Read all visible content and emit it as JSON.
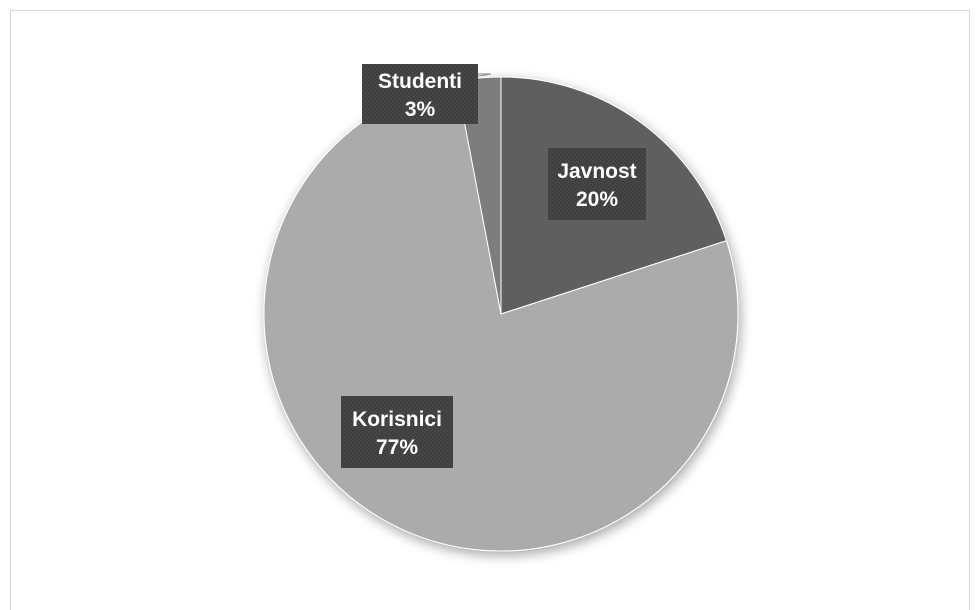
{
  "chart_data": {
    "type": "pie",
    "title": "",
    "start_angle_deg": 0,
    "direction": "clockwise",
    "slices": [
      {
        "name": "Javnost",
        "value": 20,
        "label": "20%",
        "color": "#5f5f5f"
      },
      {
        "name": "Korisnici",
        "value": 77,
        "label": "77%",
        "color": "#ababab"
      },
      {
        "name": "Studenti",
        "value": 3,
        "label": "3%",
        "color": "#7d7d7d"
      }
    ],
    "label_box_color": "#3f3f3f",
    "legend": "none"
  }
}
